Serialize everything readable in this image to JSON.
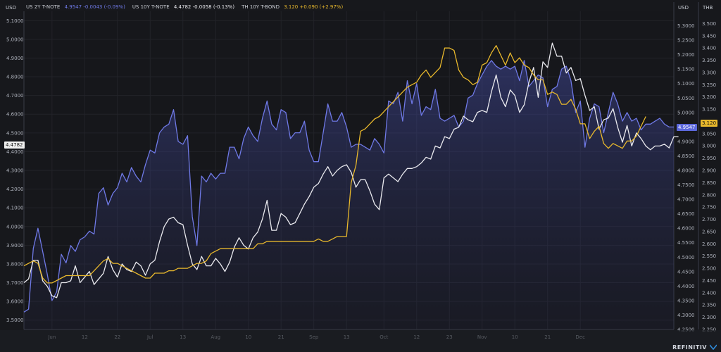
{
  "units": {
    "left": "USD",
    "right1": "USD",
    "right2": "THB"
  },
  "legend": [
    {
      "name": "US 2Y T-NOTE",
      "value": "4.9547",
      "change": "-0.0043 (-0.09%)",
      "color": "#6f79e6"
    },
    {
      "name": "US 10Y T-NOTE",
      "value": "4.4782",
      "change": "-0.0058 (-0.13%)",
      "color": "#e9e9ee"
    },
    {
      "name": "TH 10Y T-BOND",
      "value": "3.120",
      "change": "+0.090 (+2.97%)",
      "color": "#e8b82c"
    }
  ],
  "tags": {
    "left_last": "4.4782",
    "right1_last": "4.9547",
    "right2_last": "3.120"
  },
  "watermark": "REFINITIV",
  "chart_data": {
    "type": "line",
    "x_ticks": [
      "Jun",
      "12",
      "22",
      "Jul",
      "13",
      "Aug",
      "10",
      "21",
      "Sep",
      "13",
      "Oct",
      "12",
      "23",
      "Nov",
      "10",
      "21",
      "Dec"
    ],
    "x_tick_index": [
      6,
      13,
      20,
      27,
      34,
      41,
      48,
      55,
      62,
      69,
      77,
      84,
      91,
      98,
      105,
      112,
      119
    ],
    "left_axis": {
      "unit": "USD",
      "min": 3.45,
      "max": 5.15,
      "ticks": [
        "3.5000",
        "3.6000",
        "3.7000",
        "3.8000",
        "3.9000",
        "4.0000",
        "4.1000",
        "4.2000",
        "4.3000",
        "4.4000",
        "4.5000",
        "4.6000",
        "4.7000",
        "4.8000",
        "4.9000",
        "5.0000",
        "5.1000"
      ]
    },
    "right_axis_usd": {
      "unit": "USD",
      "min": 4.25,
      "max": 5.35,
      "ticks": [
        "4.2500",
        "4.3000",
        "4.3500",
        "4.4000",
        "4.4500",
        "4.5000",
        "4.5500",
        "4.6000",
        "4.6500",
        "4.7000",
        "4.7500",
        "4.8000",
        "4.8500",
        "4.9000",
        "4.9500",
        "5.0000",
        "5.0500",
        "5.1000",
        "5.1500",
        "5.2000",
        "5.2500",
        "5.3000"
      ]
    },
    "right_axis_thb": {
      "unit": "THB",
      "min": 2.25,
      "max": 3.55,
      "ticks": [
        "2.250",
        "2.300",
        "2.350",
        "2.400",
        "2.450",
        "2.500",
        "2.550",
        "2.600",
        "2.650",
        "2.700",
        "2.750",
        "2.800",
        "2.850",
        "2.900",
        "2.950",
        "3.000",
        "3.050",
        "3.100",
        "3.150",
        "3.200",
        "3.250",
        "3.300",
        "3.350",
        "3.400",
        "3.450",
        "3.500"
      ]
    },
    "series": [
      {
        "name": "US 2Y T-NOTE",
        "axis": "right_usd",
        "color": "#6f79e6",
        "fill": true,
        "values": [
          4.31,
          4.32,
          4.53,
          4.6,
          4.52,
          4.44,
          4.35,
          4.38,
          4.51,
          4.48,
          4.54,
          4.52,
          4.56,
          4.57,
          4.59,
          4.58,
          4.72,
          4.74,
          4.68,
          4.72,
          4.74,
          4.79,
          4.76,
          4.81,
          4.78,
          4.76,
          4.82,
          4.87,
          4.86,
          4.93,
          4.95,
          4.96,
          5.01,
          4.9,
          4.89,
          4.92,
          4.64,
          4.54,
          4.78,
          4.76,
          4.79,
          4.77,
          4.79,
          4.79,
          4.88,
          4.88,
          4.84,
          4.91,
          4.95,
          4.92,
          4.9,
          4.98,
          5.04,
          4.96,
          4.94,
          5.01,
          5.0,
          4.91,
          4.93,
          4.93,
          4.97,
          4.87,
          4.83,
          4.83,
          4.93,
          5.03,
          4.97,
          4.97,
          5.0,
          4.95,
          4.88,
          4.89,
          4.89,
          4.88,
          4.87,
          4.91,
          4.89,
          4.86,
          5.04,
          5.03,
          5.07,
          4.97,
          5.11,
          5.03,
          5.1,
          4.99,
          5.02,
          5.01,
          5.08,
          4.98,
          4.97,
          4.98,
          4.99,
          4.95,
          4.97,
          5.05,
          5.06,
          5.1,
          5.13,
          5.16,
          5.18,
          5.16,
          5.15,
          5.16,
          5.15,
          5.16,
          5.11,
          5.18,
          5.09,
          5.11,
          5.13,
          5.12,
          5.02,
          5.08,
          5.09,
          5.15,
          5.16,
          5.11,
          5.0,
          5.04,
          4.88,
          4.98,
          5.03,
          5.02,
          4.93,
          5.0,
          5.07,
          5.03,
          4.97,
          5.0,
          4.97,
          4.98,
          4.94,
          4.96,
          4.96,
          4.97,
          4.98,
          4.96,
          4.95,
          4.95
        ]
      },
      {
        "name": "US 10Y T-NOTE",
        "axis": "left",
        "color": "#e9e9ee",
        "values": [
          3.7,
          3.72,
          3.82,
          3.82,
          3.71,
          3.68,
          3.63,
          3.62,
          3.7,
          3.7,
          3.71,
          3.79,
          3.7,
          3.73,
          3.76,
          3.69,
          3.72,
          3.75,
          3.84,
          3.77,
          3.73,
          3.8,
          3.77,
          3.76,
          3.81,
          3.79,
          3.74,
          3.8,
          3.82,
          3.92,
          4.0,
          4.04,
          4.05,
          4.02,
          4.01,
          3.9,
          3.8,
          3.77,
          3.84,
          3.79,
          3.79,
          3.83,
          3.8,
          3.76,
          3.81,
          3.89,
          3.94,
          3.9,
          3.88,
          3.94,
          3.97,
          4.04,
          4.14,
          3.98,
          3.98,
          4.07,
          4.05,
          4.01,
          4.02,
          4.07,
          4.12,
          4.16,
          4.21,
          4.23,
          4.28,
          4.32,
          4.27,
          4.3,
          4.32,
          4.33,
          4.29,
          4.21,
          4.25,
          4.25,
          4.19,
          4.12,
          4.09,
          4.26,
          4.28,
          4.26,
          4.24,
          4.28,
          4.31,
          4.31,
          4.32,
          4.34,
          4.37,
          4.36,
          4.43,
          4.42,
          4.48,
          4.47,
          4.52,
          4.53,
          4.59,
          4.57,
          4.56,
          4.61,
          4.62,
          4.61,
          4.72,
          4.81,
          4.69,
          4.64,
          4.73,
          4.7,
          4.61,
          4.65,
          4.77,
          4.85,
          4.69,
          4.88,
          4.85,
          4.98,
          4.91,
          4.91,
          4.82,
          4.85,
          4.78,
          4.79,
          4.7,
          4.62,
          4.64,
          4.52,
          4.57,
          4.58,
          4.63,
          4.53,
          4.45,
          4.54,
          4.43,
          4.5,
          4.47,
          4.43,
          4.41,
          4.43,
          4.43,
          4.44,
          4.42,
          4.48,
          4.48
        ]
      },
      {
        "name": "TH 10Y T-BOND",
        "axis": "right_thb",
        "color": "#e8b82c",
        "values": [
          2.51,
          2.52,
          2.53,
          2.52,
          2.46,
          2.44,
          2.44,
          2.45,
          2.46,
          2.47,
          2.47,
          2.47,
          2.47,
          2.47,
          2.47,
          2.49,
          2.51,
          2.53,
          2.54,
          2.52,
          2.52,
          2.51,
          2.5,
          2.49,
          2.48,
          2.47,
          2.46,
          2.46,
          2.48,
          2.48,
          2.48,
          2.49,
          2.49,
          2.5,
          2.5,
          2.5,
          2.51,
          2.52,
          2.52,
          2.53,
          2.56,
          2.57,
          2.58,
          2.58,
          2.58,
          2.58,
          2.58,
          2.58,
          2.58,
          2.58,
          2.6,
          2.6,
          2.61,
          2.61,
          2.61,
          2.61,
          2.61,
          2.61,
          2.61,
          2.61,
          2.61,
          2.61,
          2.61,
          2.62,
          2.61,
          2.61,
          2.62,
          2.63,
          2.63,
          2.63,
          2.85,
          2.92,
          3.06,
          3.07,
          3.09,
          3.11,
          3.12,
          3.14,
          3.16,
          3.18,
          3.2,
          3.22,
          3.24,
          3.25,
          3.26,
          3.29,
          3.31,
          3.28,
          3.3,
          3.32,
          3.4,
          3.4,
          3.39,
          3.31,
          3.28,
          3.27,
          3.25,
          3.26,
          3.33,
          3.34,
          3.38,
          3.41,
          3.37,
          3.33,
          3.38,
          3.34,
          3.36,
          3.33,
          3.32,
          3.29,
          3.27,
          3.27,
          3.21,
          3.22,
          3.21,
          3.17,
          3.17,
          3.19,
          3.15,
          3.09,
          3.09,
          3.03,
          3.06,
          3.08,
          3.01,
          2.99,
          3.01,
          3.0,
          2.99,
          3.02,
          3.02,
          3.04,
          3.08,
          3.12
        ]
      }
    ]
  }
}
